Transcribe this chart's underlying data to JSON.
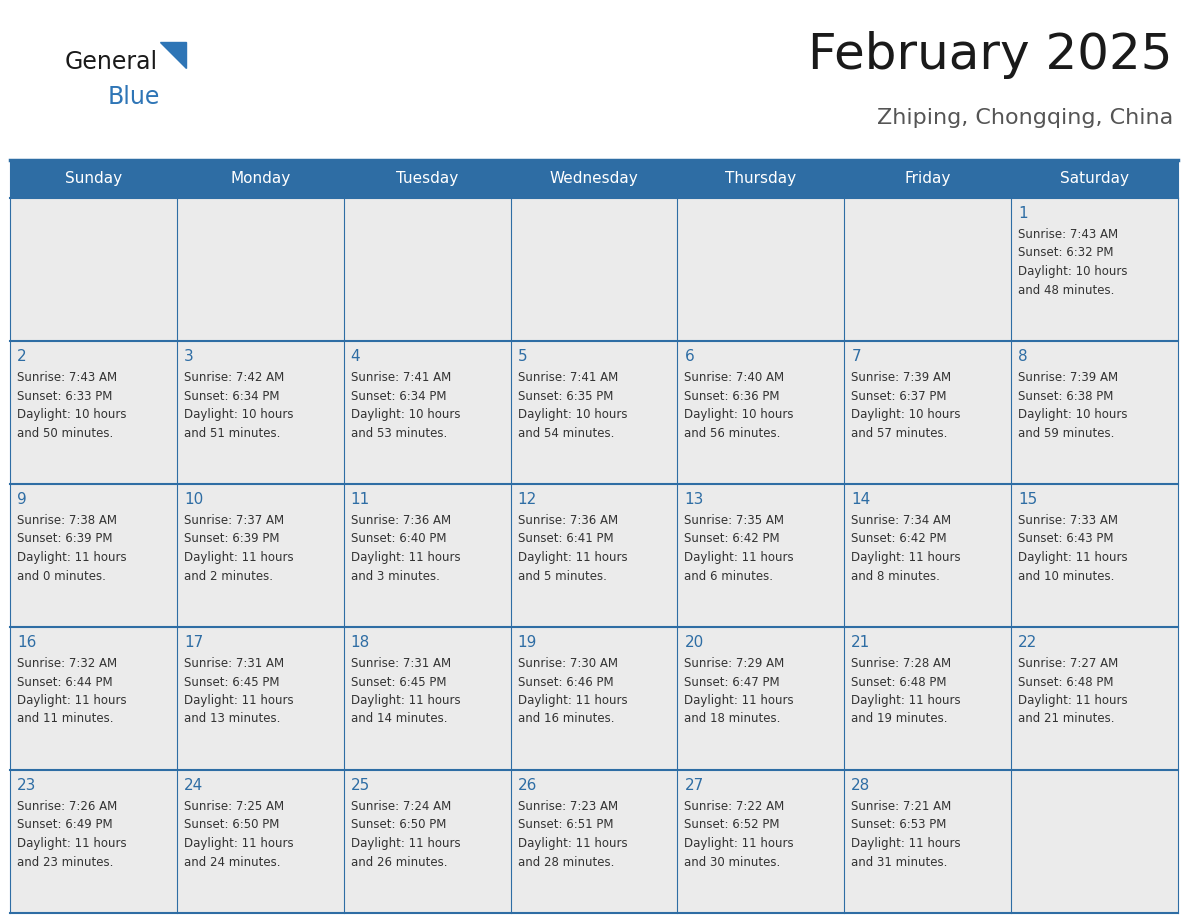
{
  "title": "February 2025",
  "subtitle": "Zhiping, Chongqing, China",
  "header_bg_color": "#2E6DA4",
  "header_text_color": "#FFFFFF",
  "cell_bg_color": "#EBEBEB",
  "cell_text_color": "#333333",
  "day_number_color": "#2E6DA4",
  "border_color": "#2E6DA4",
  "days_of_week": [
    "Sunday",
    "Monday",
    "Tuesday",
    "Wednesday",
    "Thursday",
    "Friday",
    "Saturday"
  ],
  "calendar_data": [
    [
      {
        "day": "",
        "info": ""
      },
      {
        "day": "",
        "info": ""
      },
      {
        "day": "",
        "info": ""
      },
      {
        "day": "",
        "info": ""
      },
      {
        "day": "",
        "info": ""
      },
      {
        "day": "",
        "info": ""
      },
      {
        "day": "1",
        "info": "Sunrise: 7:43 AM\nSunset: 6:32 PM\nDaylight: 10 hours\nand 48 minutes."
      }
    ],
    [
      {
        "day": "2",
        "info": "Sunrise: 7:43 AM\nSunset: 6:33 PM\nDaylight: 10 hours\nand 50 minutes."
      },
      {
        "day": "3",
        "info": "Sunrise: 7:42 AM\nSunset: 6:34 PM\nDaylight: 10 hours\nand 51 minutes."
      },
      {
        "day": "4",
        "info": "Sunrise: 7:41 AM\nSunset: 6:34 PM\nDaylight: 10 hours\nand 53 minutes."
      },
      {
        "day": "5",
        "info": "Sunrise: 7:41 AM\nSunset: 6:35 PM\nDaylight: 10 hours\nand 54 minutes."
      },
      {
        "day": "6",
        "info": "Sunrise: 7:40 AM\nSunset: 6:36 PM\nDaylight: 10 hours\nand 56 minutes."
      },
      {
        "day": "7",
        "info": "Sunrise: 7:39 AM\nSunset: 6:37 PM\nDaylight: 10 hours\nand 57 minutes."
      },
      {
        "day": "8",
        "info": "Sunrise: 7:39 AM\nSunset: 6:38 PM\nDaylight: 10 hours\nand 59 minutes."
      }
    ],
    [
      {
        "day": "9",
        "info": "Sunrise: 7:38 AM\nSunset: 6:39 PM\nDaylight: 11 hours\nand 0 minutes."
      },
      {
        "day": "10",
        "info": "Sunrise: 7:37 AM\nSunset: 6:39 PM\nDaylight: 11 hours\nand 2 minutes."
      },
      {
        "day": "11",
        "info": "Sunrise: 7:36 AM\nSunset: 6:40 PM\nDaylight: 11 hours\nand 3 minutes."
      },
      {
        "day": "12",
        "info": "Sunrise: 7:36 AM\nSunset: 6:41 PM\nDaylight: 11 hours\nand 5 minutes."
      },
      {
        "day": "13",
        "info": "Sunrise: 7:35 AM\nSunset: 6:42 PM\nDaylight: 11 hours\nand 6 minutes."
      },
      {
        "day": "14",
        "info": "Sunrise: 7:34 AM\nSunset: 6:42 PM\nDaylight: 11 hours\nand 8 minutes."
      },
      {
        "day": "15",
        "info": "Sunrise: 7:33 AM\nSunset: 6:43 PM\nDaylight: 11 hours\nand 10 minutes."
      }
    ],
    [
      {
        "day": "16",
        "info": "Sunrise: 7:32 AM\nSunset: 6:44 PM\nDaylight: 11 hours\nand 11 minutes."
      },
      {
        "day": "17",
        "info": "Sunrise: 7:31 AM\nSunset: 6:45 PM\nDaylight: 11 hours\nand 13 minutes."
      },
      {
        "day": "18",
        "info": "Sunrise: 7:31 AM\nSunset: 6:45 PM\nDaylight: 11 hours\nand 14 minutes."
      },
      {
        "day": "19",
        "info": "Sunrise: 7:30 AM\nSunset: 6:46 PM\nDaylight: 11 hours\nand 16 minutes."
      },
      {
        "day": "20",
        "info": "Sunrise: 7:29 AM\nSunset: 6:47 PM\nDaylight: 11 hours\nand 18 minutes."
      },
      {
        "day": "21",
        "info": "Sunrise: 7:28 AM\nSunset: 6:48 PM\nDaylight: 11 hours\nand 19 minutes."
      },
      {
        "day": "22",
        "info": "Sunrise: 7:27 AM\nSunset: 6:48 PM\nDaylight: 11 hours\nand 21 minutes."
      }
    ],
    [
      {
        "day": "23",
        "info": "Sunrise: 7:26 AM\nSunset: 6:49 PM\nDaylight: 11 hours\nand 23 minutes."
      },
      {
        "day": "24",
        "info": "Sunrise: 7:25 AM\nSunset: 6:50 PM\nDaylight: 11 hours\nand 24 minutes."
      },
      {
        "day": "25",
        "info": "Sunrise: 7:24 AM\nSunset: 6:50 PM\nDaylight: 11 hours\nand 26 minutes."
      },
      {
        "day": "26",
        "info": "Sunrise: 7:23 AM\nSunset: 6:51 PM\nDaylight: 11 hours\nand 28 minutes."
      },
      {
        "day": "27",
        "info": "Sunrise: 7:22 AM\nSunset: 6:52 PM\nDaylight: 11 hours\nand 30 minutes."
      },
      {
        "day": "28",
        "info": "Sunrise: 7:21 AM\nSunset: 6:53 PM\nDaylight: 11 hours\nand 31 minutes."
      },
      {
        "day": "",
        "info": ""
      }
    ]
  ],
  "logo_text1": "General",
  "logo_text2": "Blue",
  "logo_color1": "#1a1a1a",
  "logo_color2": "#2E75B6",
  "logo_triangle_color": "#2E75B6",
  "fig_width": 11.88,
  "fig_height": 9.18,
  "fig_dpi": 100
}
